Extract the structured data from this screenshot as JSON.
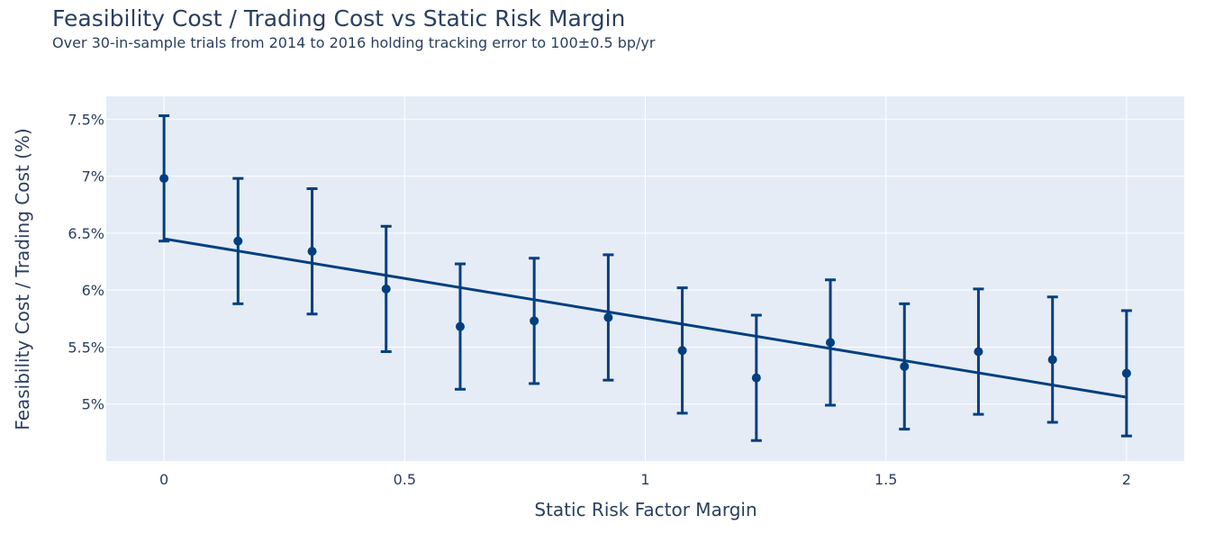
{
  "chart_data": {
    "type": "scatter",
    "title": "Feasibility Cost / Trading Cost vs Static Risk Margin",
    "subtitle": "Over 30-in-sample trials from 2014 to 2016 holding tracking error to 100±0.5 bp/yr",
    "xlabel": "Static Risk Factor Margin",
    "ylabel": "Feasibility Cost / Trading Cost (%)",
    "xlim": [
      -0.12,
      2.12
    ],
    "ylim": [
      4.5,
      7.7
    ],
    "x_ticks": [
      0,
      0.5,
      1,
      1.5,
      2
    ],
    "x_tick_labels": [
      "0",
      "0.5",
      "1",
      "1.5",
      "2"
    ],
    "y_ticks": [
      5,
      5.5,
      6,
      6.5,
      7,
      7.5
    ],
    "y_tick_labels": [
      "5%",
      "5.5%",
      "6%",
      "6.5%",
      "7%",
      "7.5%"
    ],
    "grid": true,
    "colors": {
      "series": "#003f7f",
      "plot_bg": "#e5ecf6",
      "grid": "#ffffff",
      "text": "#2a3f5f"
    },
    "series": [
      {
        "x": [
          0,
          0.1538,
          0.3077,
          0.4615,
          0.6154,
          0.7692,
          0.9231,
          1.0769,
          1.2308,
          1.3846,
          1.5385,
          1.6923,
          1.8462,
          2.0
        ],
        "values": [
          6.98,
          6.43,
          6.34,
          6.01,
          5.68,
          5.73,
          5.76,
          5.47,
          5.23,
          5.54,
          5.33,
          5.46,
          5.39,
          5.27
        ],
        "error": [
          0.55,
          0.55,
          0.55,
          0.55,
          0.55,
          0.55,
          0.55,
          0.55,
          0.55,
          0.55,
          0.55,
          0.55,
          0.55,
          0.55
        ]
      }
    ],
    "trendline": {
      "x": [
        0,
        2
      ],
      "y": [
        6.45,
        5.06
      ]
    }
  }
}
